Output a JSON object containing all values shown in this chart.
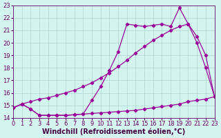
{
  "xlabel": "Windchill (Refroidissement éolien,°C)",
  "background_color": "#d4f5ef",
  "line_color": "#990099",
  "grid_color": "#aacccc",
  "xlim": [
    0,
    23
  ],
  "ylim": [
    14,
    23
  ],
  "xticks": [
    0,
    1,
    2,
    3,
    4,
    5,
    6,
    7,
    8,
    9,
    10,
    11,
    12,
    13,
    14,
    15,
    16,
    17,
    18,
    19,
    20,
    21,
    22,
    23
  ],
  "yticks": [
    14,
    15,
    16,
    17,
    18,
    19,
    20,
    21,
    22,
    23
  ],
  "series_bottom_x": [
    0,
    1,
    2,
    3,
    4,
    5,
    6,
    7,
    8,
    9,
    10,
    11,
    12,
    13,
    14,
    15,
    16,
    17,
    18,
    19,
    20,
    21,
    22,
    23
  ],
  "series_bottom_y": [
    14.8,
    15.1,
    14.7,
    14.2,
    14.2,
    14.2,
    14.2,
    14.25,
    14.3,
    14.35,
    14.4,
    14.45,
    14.5,
    14.55,
    14.6,
    14.7,
    14.8,
    14.9,
    15.0,
    15.1,
    15.3,
    15.4,
    15.5,
    15.7
  ],
  "series_mid_x": [
    0,
    1,
    2,
    3,
    4,
    5,
    6,
    7,
    8,
    9,
    10,
    11,
    12,
    13,
    14,
    15,
    16,
    17,
    18,
    19,
    20,
    21,
    22,
    23
  ],
  "series_mid_y": [
    14.8,
    15.1,
    15.3,
    15.5,
    15.6,
    15.8,
    16.0,
    16.2,
    16.5,
    16.8,
    17.2,
    17.6,
    18.1,
    18.6,
    19.2,
    19.7,
    20.2,
    20.6,
    21.0,
    21.3,
    21.5,
    20.5,
    19.0,
    15.7
  ],
  "series_top_x": [
    0,
    1,
    2,
    3,
    4,
    5,
    6,
    7,
    8,
    9,
    10,
    11,
    12,
    13,
    14,
    15,
    16,
    17,
    18,
    19,
    20,
    21,
    22,
    23
  ],
  "series_top_y": [
    14.8,
    15.1,
    14.7,
    14.2,
    14.2,
    14.2,
    14.2,
    14.25,
    14.3,
    15.4,
    16.5,
    17.8,
    19.3,
    21.5,
    21.4,
    21.3,
    21.4,
    21.5,
    21.3,
    22.8,
    21.5,
    20.0,
    18.0,
    15.7
  ],
  "tick_fontsize": 6,
  "xlabel_fontsize": 7
}
